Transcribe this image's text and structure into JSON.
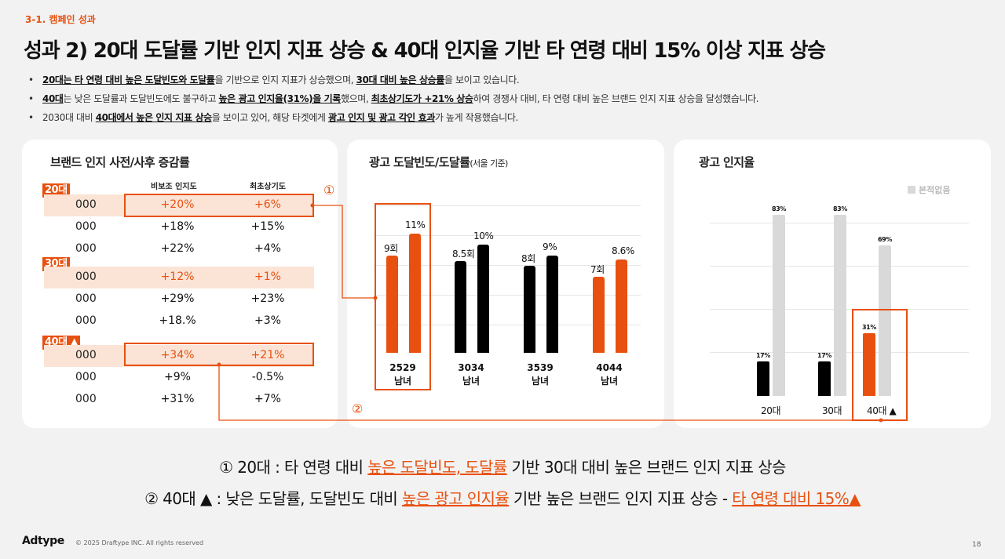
{
  "header": {
    "section": "3-1. 캠페인 성과",
    "title": "성과 2) 20대 도달률 기반 인지 지표 상승 & 40대 인지율 기반 타 연령 대비 15% 이상 지표 상승"
  },
  "bullets": [
    {
      "a": "20대는 타 연령 대비 높은 도달빈도와 도달률",
      "b": "을 기반으로 인지 지표가 상승했으며, ",
      "c": "30대 대비 높은 상승률",
      "d": "을 보이고 있습니다."
    },
    {
      "a": "40대",
      "b": "는 낮은 도달률과 도달빈도에도 불구하고 ",
      "c": "높은 광고 인지율(31%)을 기록",
      "d": "했으며, ",
      "e": "최초상기도가 +21% 상승",
      "f": "하여 경쟁사 대비, 타 연령 대비 높은 브랜드 인지 지표 상승을 달성했습니다."
    },
    {
      "a": "2030대 대비 ",
      "b": "40대에서 높은 인지 지표 상승",
      "c": "을 보이고 있어, 해당 타겟에게 ",
      "d": "광고 인지 및 광고 각인 효과",
      "e": "가 높게 작용했습니다."
    }
  ],
  "brand_table": {
    "title": "브랜드 인지 사전/사후 증감률",
    "col_headers": [
      "비보조 인지도",
      "최초상기도"
    ],
    "groups": [
      {
        "tag": "20대",
        "rows": [
          [
            "000",
            "+20%",
            "+6%"
          ],
          [
            "000",
            "+18%",
            "+15%"
          ],
          [
            "000",
            "+22%",
            "+4%"
          ]
        ]
      },
      {
        "tag": "30대",
        "rows": [
          [
            "000",
            "+12%",
            "+1%"
          ],
          [
            "000",
            "+29%",
            "+23%"
          ],
          [
            "000",
            "+18.%",
            "+3%"
          ]
        ]
      },
      {
        "tag": "40대 ▲",
        "rows": [
          [
            "000",
            "+34%",
            "+21%"
          ],
          [
            "000",
            "+9%",
            "-0.5%"
          ],
          [
            "000",
            "+31%",
            "+7%"
          ]
        ]
      }
    ]
  },
  "chart_data": [
    {
      "type": "bar",
      "title": "광고 도달빈도/도달률",
      "subtitle": "(서울 기준)",
      "categories": [
        "2529 남녀",
        "3034 남녀",
        "3539 남녀",
        "4044 남녀"
      ],
      "series": [
        {
          "values": [
            9,
            8.5,
            8,
            7
          ],
          "labels": [
            "9회",
            "8.5회",
            "8회",
            "7회"
          ]
        },
        {
          "values": [
            11,
            10,
            9,
            8.6
          ],
          "labels": [
            "11%",
            "10%",
            "9%",
            "8.6%"
          ]
        }
      ],
      "colors": [
        "#e8500f",
        "#000000",
        "#000000",
        "#e8500f"
      ],
      "grid": true
    },
    {
      "type": "bar",
      "title": "광고 인지율",
      "categories": [
        "20대",
        "30대",
        "40대 ▲"
      ],
      "series": [
        {
          "values": [
            17,
            17,
            31
          ],
          "labels": [
            "17%",
            "17%",
            "31%"
          ]
        },
        {
          "name": "본적없음",
          "values": [
            83,
            83,
            69
          ],
          "labels": [
            "83%",
            "83%",
            "69%"
          ]
        }
      ],
      "legend": "top-right",
      "ylim": [
        0,
        100
      ],
      "grid": true
    }
  ],
  "markers": {
    "one": "①",
    "two": "②"
  },
  "summary": {
    "line1": {
      "a": "① 20대 : 타 연령 대비 ",
      "b": "높은 도달빈도, 도달률",
      "c": " 기반 30대 대비 높은 브랜드 인지 지표 상승"
    },
    "line2": {
      "a": "② 40대 ▲ : 낮은 도달률, 도달빈도 대비 ",
      "b": "높은 광고 인지율",
      "c": " 기반 높은 브랜드 인지 지표 상승 - ",
      "d": "타 연령 대비 15%▲"
    }
  },
  "footer": {
    "logo": "Adtype",
    "copyright": "© 2025 Draftype INC. All rights reserved",
    "page": "18"
  },
  "colors": {
    "accent": "#e8500f",
    "highlight": "#fbe4d6",
    "grey": "#d9d9d9"
  }
}
